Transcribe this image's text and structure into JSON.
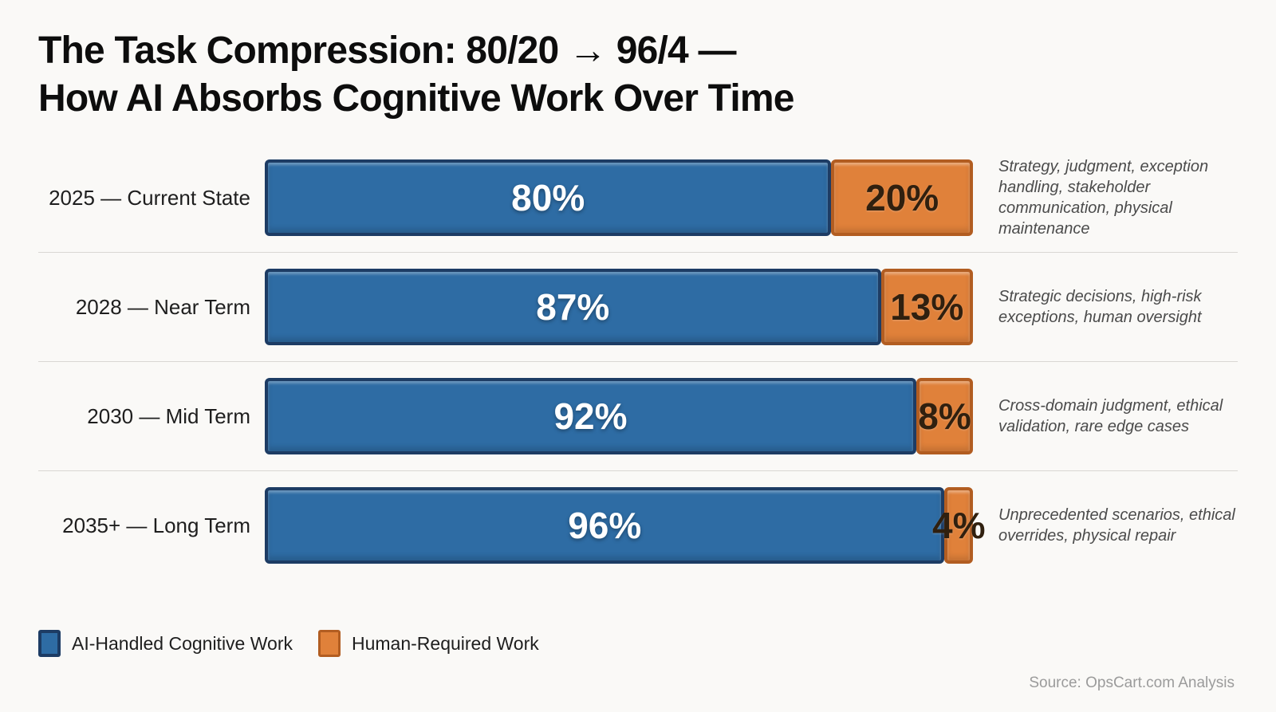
{
  "title": {
    "line1": "The Task Compression: 80/20 → 96/4 —",
    "line2": "How AI Absorbs Cognitive Work Over Time"
  },
  "legend": {
    "ai_label": "AI-Handled Cognitive Work",
    "human_label": "Human-Required Work"
  },
  "source": "Source: OpsCart.com Analysis",
  "colors": {
    "page_bg": "#faf9f7",
    "title_text": "#0d0d0d",
    "label_text": "#1e1e1e",
    "note_text": "#4b4b4b",
    "separator": "#d9d7d3",
    "source_text": "#9b9b9b",
    "ai_fill": "#2e6ca4",
    "ai_border": "#1d3c64",
    "human_fill": "#e0813a",
    "human_border": "#b25d21",
    "value_on_ai": "#ffffff",
    "value_on_human": "#30200f"
  },
  "chart_data": {
    "type": "bar",
    "orientation": "horizontal-stacked",
    "title": "The Task Compression: 80/20 → 96/4 — How AI Absorbs Cognitive Work Over Time",
    "categories": [
      "2025 — Current State",
      "2028 — Near Term",
      "2030 — Mid Term",
      "2035+ — Long Term"
    ],
    "series": [
      {
        "name": "AI-Handled Cognitive Work",
        "color": "#2e6ca4",
        "values": [
          80,
          87,
          92,
          96
        ]
      },
      {
        "name": "Human-Required Work",
        "color": "#e0813a",
        "values": [
          20,
          13,
          8,
          4
        ]
      }
    ],
    "annotations": [
      "Strategy, judgment, exception handling, stakeholder communication, physical maintenance",
      "Strategic decisions, high-risk exceptions, human oversight",
      "Cross-domain judgment, ethical validation, rare edge cases",
      "Unprecedented scenarios, ethical overrides, physical repair"
    ],
    "value_format": "percent",
    "xlim": [
      0,
      100
    ],
    "grid": false,
    "legend_position": "bottom-left"
  }
}
